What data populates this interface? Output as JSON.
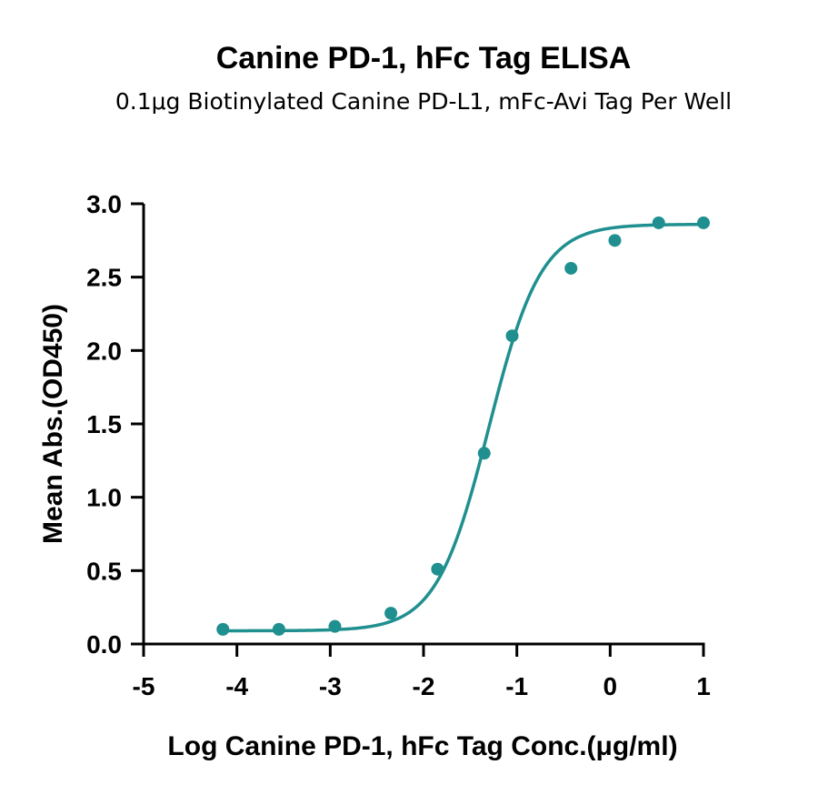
{
  "chart_data": {
    "type": "scatter",
    "title": "Canine PD-1, hFc Tag ELISA",
    "subtitle": "0.1μg Biotinylated Canine PD-L1, mFc-Avi Tag Per Well",
    "xlabel": "Log Canine PD-1, hFc Tag Conc.(μg/ml)",
    "ylabel": "Mean Abs.(OD450)",
    "xlim": [
      -5,
      1
    ],
    "ylim": [
      0,
      3.0
    ],
    "x_ticks": [
      "-5",
      "-4",
      "-3",
      "-2",
      "-1",
      "0",
      "1"
    ],
    "y_ticks": [
      "0.0",
      "0.5",
      "1.0",
      "1.5",
      "2.0",
      "2.5",
      "3.0"
    ],
    "grid": false,
    "color": "#1f8f8f",
    "series": [
      {
        "x": [
          -4.15,
          -3.55,
          -2.95,
          -2.35,
          -1.85,
          -1.35,
          -1.05,
          -0.42,
          0.05,
          0.52,
          1.0
        ],
        "y": [
          0.1,
          0.1,
          0.12,
          0.21,
          0.51,
          1.3,
          2.1,
          2.56,
          2.75,
          2.87,
          2.87
        ]
      }
    ],
    "fit": {
      "model": "4PL",
      "bottom": 0.09,
      "top": 2.86,
      "logEC50": -1.3,
      "hill": 1.55
    }
  }
}
